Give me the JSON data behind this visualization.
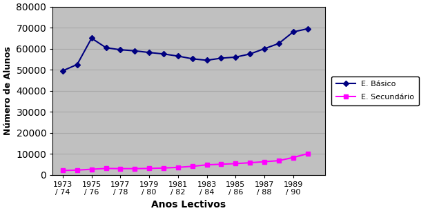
{
  "x_years": [
    1973,
    1974,
    1975,
    1976,
    1977,
    1978,
    1979,
    1980,
    1981,
    1982,
    1983,
    1984,
    1985,
    1986,
    1987,
    1988,
    1989,
    1990
  ],
  "x_tick_positions": [
    1973,
    1975,
    1977,
    1979,
    1981,
    1983,
    1985,
    1987,
    1989
  ],
  "x_labels": [
    "1973\n/ 74",
    "1975\n/ 76",
    "1977\n/ 78",
    "1979\n/ 80",
    "1981\n/ 82",
    "1983\n/ 84",
    "1985\n/ 86",
    "1987\n/ 88",
    "1989\n/ 90"
  ],
  "basico": [
    49500,
    52500,
    65000,
    60500,
    59500,
    59000,
    58200,
    57500,
    56500,
    55200,
    54500,
    55500,
    56000,
    57500,
    60000,
    62500,
    68000,
    69500
  ],
  "secundario": [
    2000,
    2200,
    2600,
    3000,
    2900,
    2900,
    3000,
    3200,
    3500,
    4000,
    4700,
    5000,
    5300,
    5700,
    6200,
    6700,
    8200,
    10000
  ],
  "basico_color": "#000080",
  "secundario_color": "#FF00FF",
  "plot_bg_color": "#C0C0C0",
  "fig_bg_color": "#FFFFFF",
  "ylabel": "Número de Alunos",
  "xlabel": "Anos Lectivos",
  "ylim": [
    0,
    80000
  ],
  "yticks": [
    0,
    10000,
    20000,
    30000,
    40000,
    50000,
    60000,
    70000,
    80000
  ],
  "legend_basico": "E. Básico",
  "legend_secundario": "E. Secundário",
  "marker_basico": "D",
  "marker_secundario": "s",
  "marker_size": 4,
  "linewidth": 1.5,
  "grid_color": "#A9A9A9",
  "grid_linewidth": 0.8
}
